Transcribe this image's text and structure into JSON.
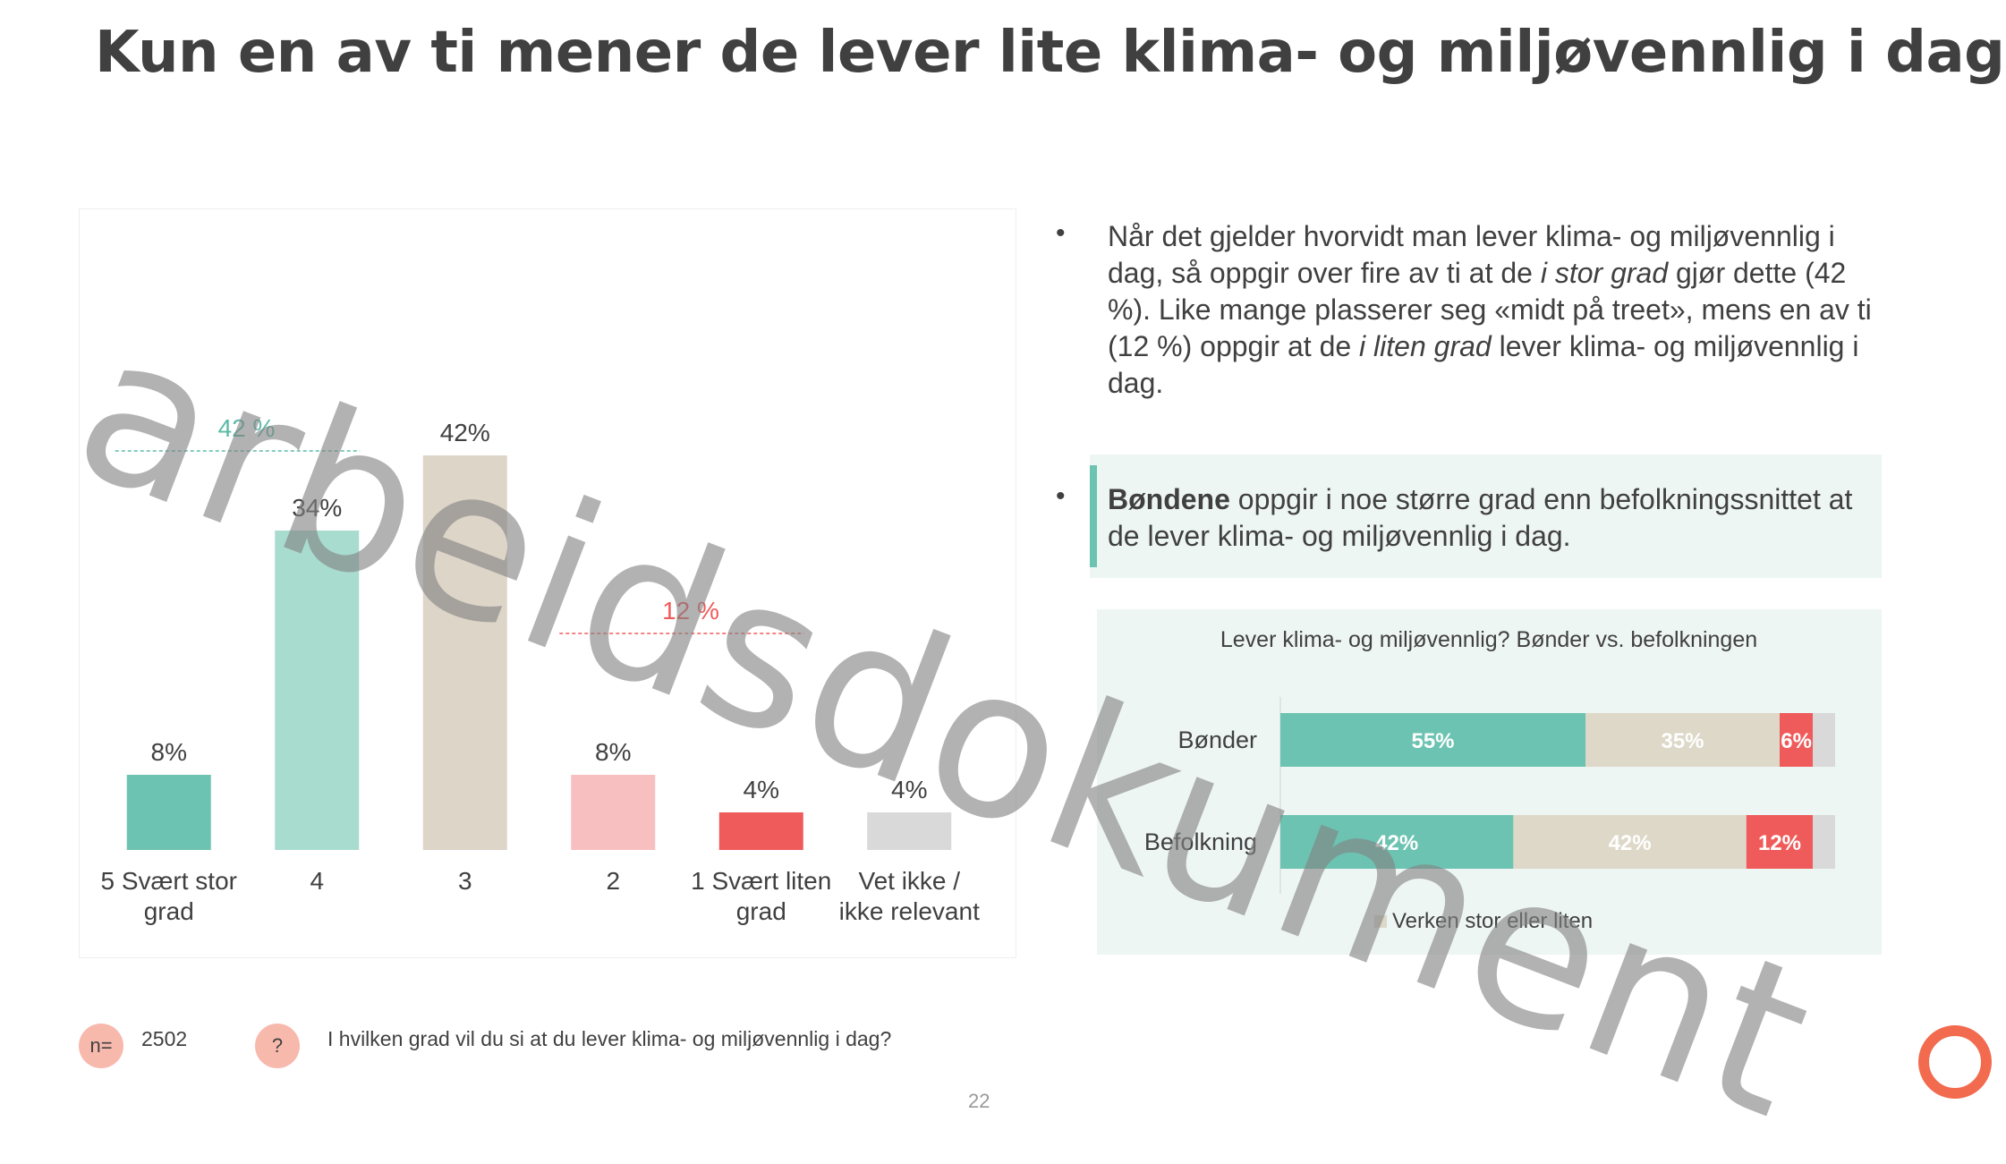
{
  "title": "Kun en av ti mener de lever lite klima- og miljøvennlig i dag",
  "bullets": {
    "b1": [
      "Når det gjelder hvorvidt man lever klima- og miljøvennlig i dag, så oppgir over fire av ti at de ",
      "i stor grad",
      " gjør dette (42 %). Like mange plasserer seg «midt på treet», mens en av ti (12 %) oppgir at de ",
      "i liten grad",
      " lever klima- og miljøvennlig i dag."
    ],
    "b2_bold": "Bøndene",
    "b2_rest": " oppgir i noe større grad enn befolkningssnittet at de lever klima- og miljøvennlig i dag."
  },
  "chart_data": [
    {
      "type": "bar",
      "categories": [
        "5 Svært stor grad",
        "4",
        "3",
        "2",
        "1 Svært liten grad",
        "Vet ikke / ikke relevant"
      ],
      "values": [
        8,
        34,
        42,
        8,
        4,
        4
      ],
      "value_labels": [
        "8%",
        "34%",
        "42%",
        "8%",
        "4%",
        "4%"
      ],
      "colors": [
        "#6cc3b1",
        "#a8dccf",
        "#ddd5c8",
        "#f7bfbf",
        "#ef5b5b",
        "#d9d9d9"
      ],
      "annotations": [
        {
          "text": "42 %",
          "covers": [
            "5 Svært stor grad",
            "4"
          ],
          "color": "#5bbaa7"
        },
        {
          "text": "12 %",
          "covers": [
            "2",
            "1 Svært liten grad"
          ],
          "color": "#ef5b5b"
        }
      ],
      "ylim": [
        0,
        50
      ],
      "grid": false
    },
    {
      "type": "bar",
      "orientation": "horizontal-stacked",
      "title": "Lever klima- og miljøvennlig? Bønder vs. befolkningen",
      "categories": [
        "Bønder",
        "Befolkning"
      ],
      "series": [
        {
          "values": [
            55,
            42
          ],
          "labels": [
            "55%",
            "42%"
          ],
          "color": "#6cc3b1"
        },
        {
          "name": "Verken stor eller liten",
          "values": [
            35,
            42
          ],
          "labels": [
            "35%",
            "42%"
          ],
          "color": "#ddd8c8"
        },
        {
          "values": [
            6,
            12
          ],
          "labels": [
            "6%",
            "12%"
          ],
          "color": "#ef5b5b"
        },
        {
          "values": [
            4,
            4
          ],
          "labels": [
            "",
            ""
          ],
          "color": "#d9d9d9"
        }
      ],
      "legend_position": "bottom",
      "xlim": [
        0,
        100
      ]
    }
  ],
  "footer": {
    "n_label": "n=",
    "n_value": "2502",
    "q_label": "?",
    "question": "I hvilken grad vil du si at du lever klima- og miljøvennlig i dag?"
  },
  "page_number": "22",
  "watermark": "arbeidsdokument",
  "colors": {
    "text": "#404040",
    "teal": "#6cc3b1",
    "red": "#ef5b5b",
    "logo": "#f26b4f",
    "panel": "#eef6f4"
  }
}
